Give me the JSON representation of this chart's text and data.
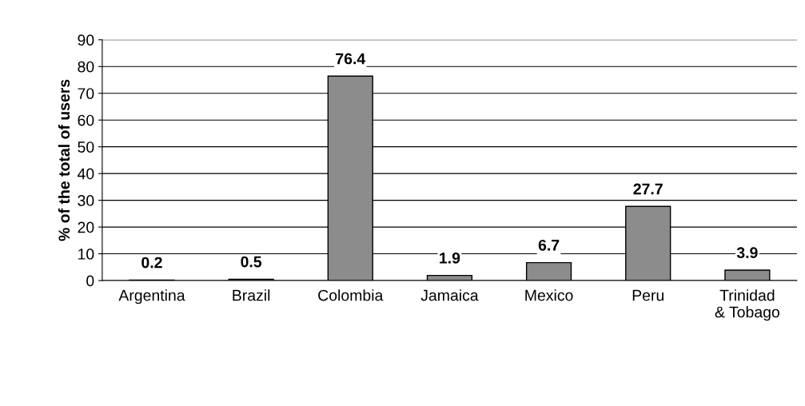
{
  "chart_data": {
    "type": "bar",
    "ylabel": "% of the total of users",
    "categories": [
      "Argentina",
      "Brazil",
      "Colombia",
      "Jamaica",
      "Mexico",
      "Peru",
      "Trinidad\n& Tobago"
    ],
    "values": [
      0.2,
      0.5,
      76.4,
      1.9,
      6.7,
      27.7,
      3.9
    ],
    "color": "#8c8c8c",
    "ylim": [
      0,
      90
    ],
    "yticks": [
      0,
      10,
      20,
      30,
      40,
      50,
      60,
      70,
      80,
      90
    ],
    "grid": "y",
    "data_labels": true
  }
}
